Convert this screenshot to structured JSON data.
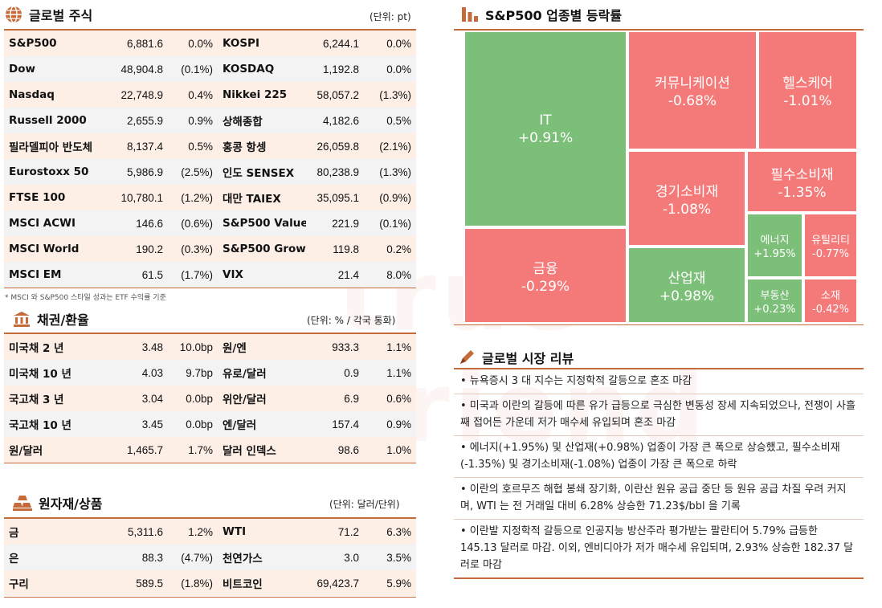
{
  "equities": {
    "title": "글로벌 주식",
    "unit": "(단위: pt)",
    "rows": [
      [
        "S&P500",
        "6,881.6",
        "0.0%",
        "KOSPI",
        "6,244.1",
        "0.0%"
      ],
      [
        "Dow",
        "48,904.8",
        "(0.1%)",
        "KOSDAQ",
        "1,192.8",
        "0.0%"
      ],
      [
        "Nasdaq",
        "22,748.9",
        "0.4%",
        "Nikkei 225",
        "58,057.2",
        "(1.3%)"
      ],
      [
        "Russell 2000",
        "2,655.9",
        "0.9%",
        "상해종합",
        "4,182.6",
        "0.5%"
      ],
      [
        "필라델피아 반도체",
        "8,137.4",
        "0.5%",
        "홍콩 항셍",
        "26,059.8",
        "(2.1%)"
      ],
      [
        "Eurostoxx 50",
        "5,986.9",
        "(2.5%)",
        "인도 SENSEX",
        "80,238.9",
        "(1.3%)"
      ],
      [
        "FTSE 100",
        "10,780.1",
        "(1.2%)",
        "대만 TAIEX",
        "35,095.1",
        "(0.9%)"
      ],
      [
        "MSCI ACWI",
        "146.6",
        "(0.6%)",
        "S&P500 Value",
        "221.9",
        "(0.1%)"
      ],
      [
        "MSCI World",
        "190.2",
        "(0.3%)",
        "S&P500 Growth",
        "119.8",
        "0.2%"
      ],
      [
        "MSCI EM",
        "61.5",
        "(1.7%)",
        "VIX",
        "21.4",
        "8.0%"
      ]
    ],
    "note": "* MSCI 와 S&P500 스타일 성과는 ETF 수익률 기준"
  },
  "bonds": {
    "title": "채권/환율",
    "unit": "(단위: % / 각국 통화)",
    "rows": [
      [
        "미국채 2 년",
        "3.48",
        "10.0bp",
        "원/엔",
        "933.3",
        "1.1%"
      ],
      [
        "미국채 10 년",
        "4.03",
        "9.7bp",
        "유로/달러",
        "0.9",
        "1.1%"
      ],
      [
        "국고채 3 년",
        "3.04",
        "0.0bp",
        "위안/달러",
        "6.9",
        "0.6%"
      ],
      [
        "국고채 10 년",
        "3.45",
        "0.0bp",
        "엔/달러",
        "157.4",
        "0.9%"
      ],
      [
        "원/달러",
        "1,465.7",
        "1.7%",
        "달러 인덱스",
        "98.6",
        "1.0%"
      ]
    ]
  },
  "commodities": {
    "title": "원자재/상품",
    "unit": "(단위: 달러/단위)",
    "rows": [
      [
        "금",
        "5,311.6",
        "1.2%",
        "WTI",
        "71.2",
        "6.3%"
      ],
      [
        "은",
        "88.3",
        "(4.7%)",
        "천연가스",
        "3.0",
        "3.5%"
      ],
      [
        "구리",
        "589.5",
        "(1.8%)",
        "비트코인",
        "69,423.7",
        "5.9%"
      ]
    ]
  },
  "sectors": {
    "title": "S&P500 업종별 등락률",
    "items": [
      {
        "name": "IT",
        "change": "+0.91%",
        "value": 0.91
      },
      {
        "name": "커뮤니케이션",
        "change": "-0.68%",
        "value": -0.68
      },
      {
        "name": "헬스케어",
        "change": "-1.01%",
        "value": -1.01
      },
      {
        "name": "경기소비재",
        "change": "-1.08%",
        "value": -1.08
      },
      {
        "name": "필수소비재",
        "change": "-1.35%",
        "value": -1.35
      },
      {
        "name": "에너지",
        "change": "+1.95%",
        "value": 1.95
      },
      {
        "name": "유틸리티",
        "change": "-0.77%",
        "value": -0.77
      },
      {
        "name": "금융",
        "change": "-0.29%",
        "value": -0.29
      },
      {
        "name": "산업재",
        "change": "+0.98%",
        "value": 0.98
      },
      {
        "name": "부동산",
        "change": "+0.23%",
        "value": 0.23
      },
      {
        "name": "소재",
        "change": "-0.42%",
        "value": -0.42
      }
    ],
    "colors": {
      "up": "#7cbf78",
      "down": "#f47a7a"
    }
  },
  "review": {
    "title": "글로벌 시장 리뷰",
    "items": [
      "• 뉴욕증시 3 대 지수는 지정학적 갈등으로 혼조 마감",
      "• 미국과 이란의 갈등에 따른 유가 급등으로 극심한 변동성 장세 지속되었으나, 전쟁이 사흘째 접어든 가운데 저가 매수세 유입되며 혼조 마감",
      "• 에너지(+1.95%) 및 산업재(+0.98%) 업종이 가장 큰 폭으로 상승했고, 필수소비재(-1.35%) 및 경기소비재(-1.08%) 업종이 가장 큰 폭으로 하락",
      "• 이란의 호르무즈 해협 봉쇄 장기화, 이란산 원유 공급 중단 등 원유 공급 차질 우려 커지며, WTI 는 전 거래일 대비 6.28% 상승한 71.23$/bbl 을 기록",
      "• 이란발 지정학적 갈등으로 인공지능 방산주라 평가받는 팔란티어 5.79% 급등한 145.13 달러로 마감. 이외, 엔비디아가 저가 매수세 유입되며, 2.93% 상승한 182.37 달러로 마감"
    ]
  },
  "watermark": "true Friend"
}
